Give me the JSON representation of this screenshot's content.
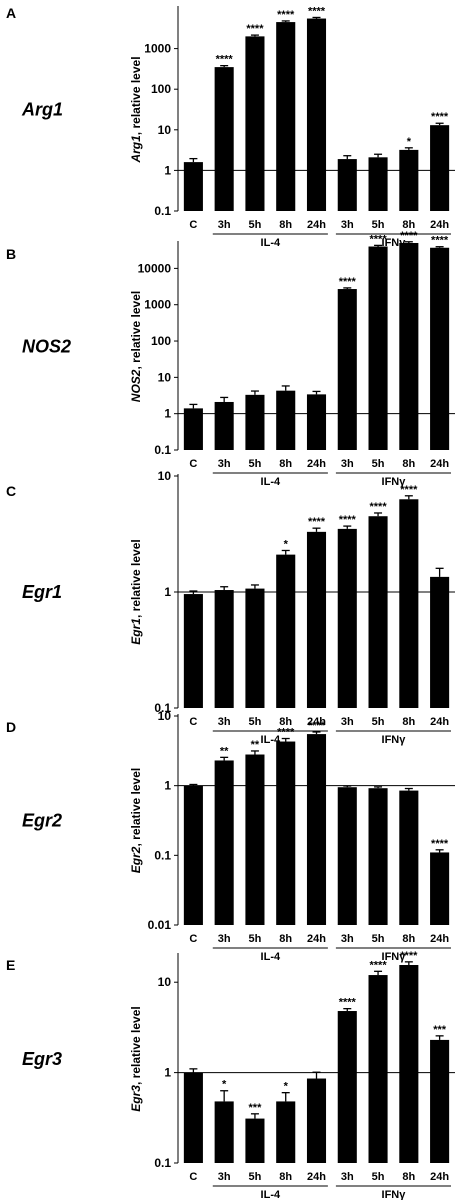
{
  "chart_data": [
    {
      "type": "bar",
      "panel": "A",
      "gene": "Arg1",
      "ylabel_gene": "Arg1",
      "ylabel_suffix": ", relative level",
      "yscale": "log",
      "ylim": [
        0.1,
        10000
      ],
      "yticks": [
        "0.1",
        "1",
        "10",
        "100",
        "1000"
      ],
      "reference_line": 1,
      "categories": [
        "C",
        "3h",
        "5h",
        "8h",
        "24h",
        "3h",
        "5h",
        "8h",
        "24h"
      ],
      "values": [
        1.6,
        350,
        2000,
        4500,
        5500,
        1.9,
        2.1,
        3.2,
        13
      ],
      "errors": [
        0.35,
        30,
        150,
        300,
        350,
        0.4,
        0.4,
        0.4,
        1.5
      ],
      "significance": [
        "",
        "****",
        "****",
        "****",
        "****",
        "",
        "",
        "*",
        "****"
      ],
      "groups": [
        "IL-4",
        "IFNγ"
      ]
    },
    {
      "type": "bar",
      "panel": "B",
      "gene": "NOS2",
      "ylabel_gene": "NOS2",
      "ylabel_suffix": ", relative level",
      "yscale": "log",
      "ylim": [
        0.1,
        50000
      ],
      "yticks": [
        "0.1",
        "1",
        "10",
        "100",
        "1000",
        "10000"
      ],
      "reference_line": 1,
      "categories": [
        "C",
        "3h",
        "5h",
        "8h",
        "24h",
        "3h",
        "5h",
        "8h",
        "24h"
      ],
      "values": [
        1.4,
        2.1,
        3.3,
        4.3,
        3.4,
        2700,
        40000,
        50000,
        37000
      ],
      "errors": [
        0.4,
        0.7,
        0.9,
        1.5,
        0.7,
        200,
        3000,
        4000,
        2500
      ],
      "significance": [
        "",
        "",
        "",
        "",
        "",
        "****",
        "****",
        "****",
        "****"
      ],
      "groups": [
        "IL-4",
        "IFNγ"
      ]
    },
    {
      "type": "bar",
      "panel": "C",
      "gene": "Egr1",
      "ylabel_gene": "Egr1",
      "ylabel_suffix": ", relative level",
      "yscale": "log",
      "ylim": [
        0.1,
        10
      ],
      "yticks": [
        "0.1",
        "1",
        "10"
      ],
      "reference_line": 1,
      "categories": [
        "C",
        "3h",
        "5h",
        "8h",
        "24h",
        "3h",
        "5h",
        "8h",
        "24h"
      ],
      "values": [
        0.96,
        1.04,
        1.07,
        2.1,
        3.3,
        3.5,
        4.5,
        6.3,
        1.35
      ],
      "errors": [
        0.06,
        0.07,
        0.08,
        0.18,
        0.25,
        0.2,
        0.3,
        0.45,
        0.25
      ],
      "significance": [
        "",
        "",
        "",
        "*",
        "****",
        "****",
        "****",
        "****",
        ""
      ],
      "groups": [
        "IL-4",
        "IFNγ"
      ]
    },
    {
      "type": "bar",
      "panel": "D",
      "gene": "Egr2",
      "ylabel_gene": "Egr2",
      "ylabel_suffix": ", relative level",
      "yscale": "log",
      "ylim": [
        0.01,
        10
      ],
      "yticks": [
        "0.01",
        "0.1",
        "1",
        "10"
      ],
      "reference_line": 1,
      "categories": [
        "C",
        "3h",
        "5h",
        "8h",
        "24h",
        "3h",
        "5h",
        "8h",
        "24h"
      ],
      "values": [
        1.0,
        2.3,
        2.8,
        4.3,
        5.5,
        0.95,
        0.92,
        0.85,
        0.11
      ],
      "errors": [
        0.04,
        0.25,
        0.35,
        0.45,
        0.4,
        0.04,
        0.04,
        0.06,
        0.01
      ],
      "significance": [
        "",
        "**",
        "**",
        "****",
        "****",
        "",
        "",
        "",
        "****"
      ],
      "groups": [
        "IL-4",
        "IFNγ"
      ]
    },
    {
      "type": "bar",
      "panel": "E",
      "gene": "Egr3",
      "ylabel_gene": "Egr3",
      "ylabel_suffix": ", relative level",
      "yscale": "log",
      "ylim": [
        0.1,
        20
      ],
      "yticks": [
        "0.1",
        "1",
        "10"
      ],
      "reference_line": 1,
      "categories": [
        "C",
        "3h",
        "5h",
        "8h",
        "24h",
        "3h",
        "5h",
        "8h",
        "24h"
      ],
      "values": [
        1.0,
        0.48,
        0.31,
        0.48,
        0.86,
        4.8,
        12,
        15.5,
        2.3
      ],
      "errors": [
        0.1,
        0.15,
        0.04,
        0.12,
        0.15,
        0.3,
        1.2,
        1.3,
        0.25
      ],
      "significance": [
        "",
        "*",
        "***",
        "*",
        "",
        "****",
        "****",
        "****",
        "***"
      ],
      "groups": [
        "IL-4",
        "IFNγ"
      ]
    }
  ]
}
